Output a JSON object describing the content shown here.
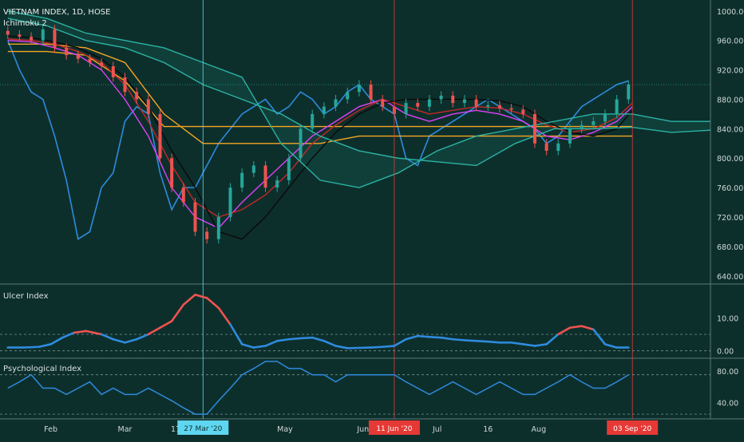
{
  "header": {
    "title": "VIETNAM INDEX, 1D, HOSE",
    "indicator": "Ichimoku 2"
  },
  "panels": {
    "ulcer_label": "Ulcer Index",
    "psy_label": "Psychological Index"
  },
  "colors": {
    "background": "#0d2f2c",
    "up": "#26a69a",
    "down": "#ef5350",
    "blue": "#2e8bde",
    "orange": "#f5a623",
    "magenta": "#e040fb",
    "red_line": "#c62828",
    "black_line": "#0a0a0a",
    "teal": "#2bb3a3",
    "cursor": "#5fd6f0"
  },
  "chart_data": [
    {
      "type": "line",
      "title": "VIETNAM INDEX, 1D, HOSE",
      "xlabel": "",
      "ylabel": "",
      "ylim": [
        630,
        1015
      ],
      "ytick_labels": [
        "1000.00",
        "960.00",
        "920.00",
        "880.00",
        "840.00",
        "800.00",
        "760.00",
        "720.00",
        "680.00",
        "640.00"
      ],
      "ytick_values": [
        1000,
        960,
        920,
        880,
        840,
        800,
        760,
        720,
        680,
        640
      ],
      "x_tick_labels": [
        "Feb",
        "Mar",
        "17",
        "May",
        "Jun",
        "Jul",
        "16",
        "Aug"
      ],
      "x_tick_days": [
        11,
        30,
        43,
        71,
        91,
        110,
        123,
        136
      ],
      "x_markers": [
        {
          "label": "27 Mar '20",
          "day": 50,
          "color": "#5fd6f0"
        },
        {
          "label": "11 Jun '20",
          "day": 99,
          "color": "#e53935"
        },
        {
          "label": "03 Sep '20",
          "day": 160,
          "color": "#e53935"
        }
      ],
      "last_value_line": 900,
      "series": [
        {
          "name": "",
          "kind": "candles",
          "color_up": "#26a69a",
          "color_down": "#ef5350",
          "days": [
            0,
            3,
            6,
            9,
            12,
            15,
            18,
            21,
            24,
            27,
            30,
            33,
            36,
            39,
            42,
            45,
            48,
            51,
            54,
            57,
            60,
            63,
            66,
            69,
            72,
            75,
            78,
            81,
            84,
            87,
            90,
            93,
            96,
            99,
            102,
            105,
            108,
            111,
            114,
            117,
            120,
            123,
            126,
            129,
            132,
            135,
            138,
            141,
            144,
            147,
            150,
            153,
            156,
            159
          ],
          "close": [
            968,
            965,
            960,
            975,
            950,
            940,
            935,
            930,
            925,
            910,
            890,
            880,
            860,
            800,
            760,
            740,
            700,
            690,
            720,
            760,
            780,
            790,
            760,
            770,
            800,
            840,
            860,
            870,
            880,
            890,
            900,
            880,
            870,
            860,
            875,
            870,
            880,
            885,
            875,
            880,
            870,
            872,
            868,
            866,
            860,
            820,
            810,
            820,
            840,
            845,
            850,
            860,
            880,
            900
          ]
        },
        {
          "name": "",
          "kind": "line",
          "color": "#2e8bde",
          "days": [
            0,
            3,
            6,
            9,
            12,
            15,
            18,
            21,
            24,
            27,
            30,
            33,
            36,
            39,
            42,
            45,
            48,
            51,
            54,
            57,
            60,
            63,
            66,
            69,
            72,
            75,
            78,
            81,
            84,
            87,
            90,
            93,
            96,
            99,
            102,
            105,
            108,
            111,
            114,
            117,
            120,
            123,
            126,
            129,
            132,
            135,
            138,
            141,
            144,
            147,
            150,
            153,
            156,
            159
          ],
          "values": [
            960,
            920,
            890,
            880,
            830,
            770,
            690,
            700,
            760,
            780,
            850,
            870,
            860,
            780,
            730,
            760,
            760,
            790,
            820,
            840,
            860,
            870,
            880,
            860,
            870,
            890,
            880,
            860,
            870,
            890,
            900,
            880,
            870,
            860,
            800,
            790,
            830,
            840,
            850,
            860,
            870,
            880,
            870,
            860,
            850,
            840,
            820,
            830,
            850,
            870,
            880,
            890,
            900,
            905
          ]
        },
        {
          "name": "",
          "kind": "line",
          "color": "#f5a623",
          "days": [
            0,
            10,
            20,
            30,
            40,
            50,
            60,
            70,
            80,
            90,
            100,
            110,
            120,
            130,
            140,
            150,
            160
          ],
          "values": [
            955,
            955,
            950,
            930,
            860,
            820,
            820,
            820,
            820,
            830,
            830,
            830,
            830,
            830,
            830,
            830,
            830
          ]
        },
        {
          "name": "",
          "kind": "line",
          "color": "#f5a623",
          "days": [
            0,
            10,
            20,
            30,
            40,
            50,
            60,
            70,
            80,
            90,
            100,
            110,
            120,
            130,
            140,
            150,
            160
          ],
          "values": [
            945,
            945,
            940,
            905,
            843,
            843,
            843,
            843,
            843,
            843,
            843,
            843,
            843,
            843,
            843,
            843,
            843
          ]
        },
        {
          "name": "",
          "kind": "line",
          "color": "#e040fb",
          "days": [
            0,
            6,
            12,
            18,
            24,
            30,
            36,
            42,
            48,
            54,
            60,
            66,
            72,
            78,
            84,
            90,
            96,
            102,
            108,
            114,
            120,
            126,
            132,
            138,
            144,
            150,
            156,
            160
          ],
          "values": [
            960,
            958,
            950,
            940,
            920,
            880,
            830,
            760,
            720,
            705,
            740,
            770,
            800,
            830,
            850,
            870,
            880,
            860,
            850,
            860,
            865,
            860,
            850,
            830,
            825,
            835,
            850,
            870
          ]
        },
        {
          "name": "",
          "kind": "line",
          "color": "#c62828",
          "days": [
            0,
            6,
            12,
            18,
            24,
            30,
            36,
            42,
            48,
            54,
            60,
            66,
            72,
            78,
            84,
            90,
            96,
            102,
            108,
            114,
            120,
            126,
            132,
            138,
            144,
            150,
            156,
            160
          ],
          "values": [
            962,
            960,
            955,
            945,
            930,
            900,
            850,
            790,
            740,
            720,
            730,
            750,
            780,
            820,
            845,
            865,
            880,
            870,
            860,
            865,
            870,
            868,
            860,
            845,
            835,
            840,
            855,
            875
          ]
        },
        {
          "name": "",
          "kind": "line",
          "color": "#0a0a0a",
          "days": [
            0,
            6,
            12,
            18,
            24,
            30,
            36,
            42,
            48,
            54,
            60,
            66,
            72,
            78,
            84,
            90,
            96,
            102,
            108,
            114,
            120,
            126,
            132,
            138,
            144,
            150,
            156,
            160
          ],
          "values": [
            966,
            964,
            958,
            950,
            935,
            910,
            870,
            810,
            760,
            700,
            690,
            720,
            760,
            800,
            835,
            860,
            875,
            880,
            880,
            880,
            880,
            878,
            870,
            850,
            835,
            830,
            840,
            865
          ]
        },
        {
          "name": "",
          "kind": "line",
          "color": "#2bb3a3",
          "days": [
            0,
            10,
            20,
            30,
            40,
            50,
            60,
            70,
            80,
            90,
            100,
            110,
            120,
            130,
            140,
            150,
            160,
            170,
            180
          ],
          "values": [
            990,
            980,
            960,
            950,
            930,
            900,
            880,
            860,
            830,
            810,
            800,
            795,
            790,
            820,
            840,
            840,
            842,
            835,
            838
          ]
        },
        {
          "name": "",
          "kind": "line",
          "color": "#2bb3a3",
          "days": [
            0,
            10,
            20,
            30,
            40,
            50,
            60,
            70,
            80,
            90,
            100,
            110,
            120,
            130,
            140,
            150,
            160,
            170,
            180
          ],
          "values": [
            1000,
            990,
            970,
            960,
            950,
            930,
            910,
            820,
            770,
            760,
            780,
            810,
            830,
            840,
            850,
            860,
            860,
            850,
            850
          ]
        }
      ]
    },
    {
      "type": "line",
      "title": "Ulcer Index",
      "xlabel": "",
      "ylabel": "",
      "ylim": [
        -2,
        20
      ],
      "ytick_labels": [
        "10.00",
        "0.00"
      ],
      "ytick_values": [
        10,
        0
      ],
      "reference_lines": [
        5,
        0
      ],
      "series": [
        {
          "name": "",
          "kind": "line",
          "color": "#2e8bde",
          "highlight_color": "#ef5350",
          "highlight_threshold": 5,
          "days": [
            0,
            4,
            8,
            11,
            14,
            17,
            20,
            24,
            27,
            30,
            33,
            36,
            39,
            42,
            45,
            48,
            51,
            54,
            57,
            60,
            63,
            66,
            69,
            72,
            75,
            78,
            81,
            84,
            87,
            90,
            93,
            96,
            99,
            102,
            105,
            108,
            111,
            114,
            117,
            120,
            123,
            126,
            129,
            132,
            135,
            138,
            141,
            144,
            147,
            150,
            153,
            156,
            159
          ],
          "values": [
            1.0,
            1.0,
            1.2,
            2.0,
            4.0,
            5.5,
            6.0,
            5.0,
            3.5,
            2.5,
            3.5,
            5.0,
            7.0,
            9.0,
            14.0,
            17.0,
            16.0,
            13.0,
            8.0,
            2.0,
            1.0,
            1.5,
            3.0,
            3.5,
            3.8,
            4.0,
            3.0,
            1.5,
            0.8,
            0.9,
            1.0,
            1.2,
            1.5,
            3.5,
            4.5,
            4.2,
            4.0,
            3.5,
            3.2,
            3.0,
            2.8,
            2.5,
            2.5,
            2.0,
            1.5,
            2.0,
            5.0,
            7.0,
            7.5,
            6.5,
            2.0,
            1.0,
            1.0
          ]
        }
      ]
    },
    {
      "type": "line",
      "title": "Psychological Index",
      "xlabel": "",
      "ylabel": "",
      "ylim": [
        20,
        95
      ],
      "ytick_labels": [
        "80.00",
        "40.00"
      ],
      "ytick_values": [
        80,
        40
      ],
      "reference_lines": [
        75,
        25
      ],
      "series": [
        {
          "name": "",
          "kind": "line",
          "color": "#2e8bde",
          "days": [
            0,
            3,
            6,
            9,
            12,
            15,
            18,
            21,
            24,
            27,
            30,
            33,
            36,
            39,
            42,
            45,
            48,
            51,
            54,
            57,
            60,
            63,
            66,
            69,
            72,
            75,
            78,
            81,
            84,
            87,
            90,
            93,
            96,
            99,
            102,
            105,
            108,
            111,
            114,
            117,
            120,
            123,
            126,
            129,
            132,
            135,
            138,
            141,
            144,
            147,
            150,
            153,
            156,
            159
          ],
          "values": [
            58,
            66,
            75,
            58,
            58,
            50,
            58,
            66,
            50,
            58,
            50,
            50,
            58,
            50,
            42,
            33,
            25,
            25,
            42,
            58,
            75,
            83,
            92,
            92,
            83,
            83,
            75,
            75,
            66,
            75,
            75,
            75,
            75,
            75,
            66,
            58,
            50,
            58,
            66,
            58,
            50,
            58,
            66,
            58,
            50,
            50,
            58,
            66,
            75,
            66,
            58,
            58,
            66,
            75
          ]
        }
      ]
    }
  ]
}
